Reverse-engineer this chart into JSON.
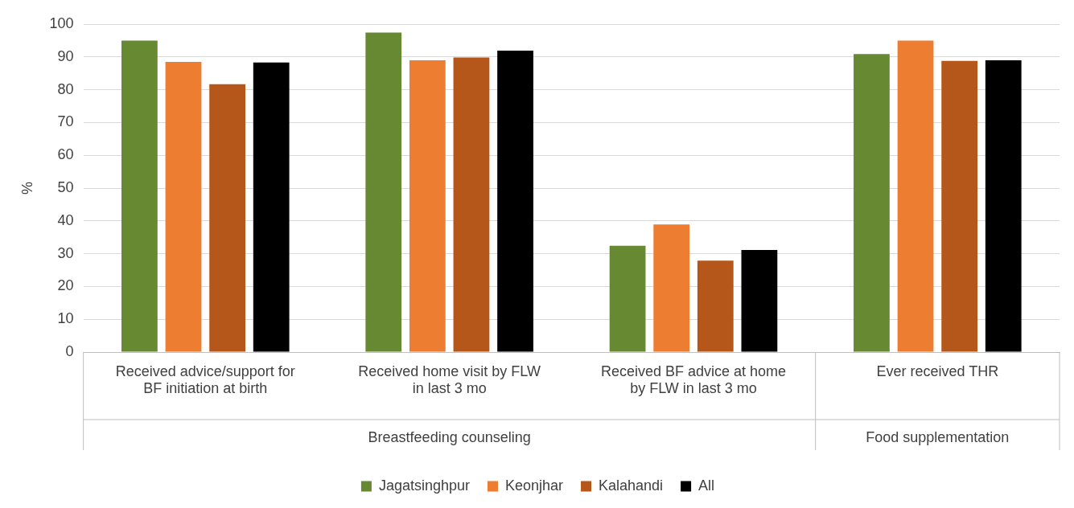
{
  "chart_data": {
    "type": "bar",
    "ylabel": "%",
    "categories": [
      "Received advice/support for BF initiation at birth",
      "Received home visit by FLW in last 3 mo",
      "Received BF advice at home by FLW in last 3 mo",
      "Ever received THR"
    ],
    "series": [
      {
        "name": "Jagatsinghpur",
        "color": "#668932",
        "values": [
          95.0,
          97.4,
          32.4,
          90.9
        ]
      },
      {
        "name": "Keonjhar",
        "color": "#ed7d31",
        "values": [
          88.5,
          89.0,
          38.9,
          95.0
        ]
      },
      {
        "name": "Kalahandi",
        "color": "#b5571a",
        "values": [
          81.7,
          89.8,
          27.9,
          88.8
        ]
      },
      {
        "name": "All",
        "color": "#000000",
        "values": [
          88.3,
          91.9,
          31.1,
          89.0
        ]
      }
    ],
    "ylim": [
      0,
      100
    ],
    "yticks": [
      0,
      10,
      20,
      30,
      40,
      50,
      60,
      70,
      80,
      90,
      100
    ],
    "grid": "y",
    "legend": "bottom",
    "annotations": [
      "Breastfeeding counseling",
      "Food supplementation"
    ]
  }
}
